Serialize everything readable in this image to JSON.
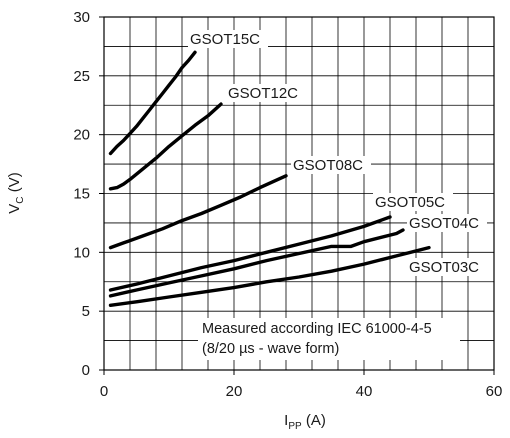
{
  "chart_data": {
    "type": "line",
    "xlabel_main": "I",
    "xlabel_sub": "PP",
    "xlabel_unit": " (A)",
    "ylabel_main": "V",
    "ylabel_sub": "C",
    "ylabel_unit": " (V)",
    "xlim": [
      0,
      60
    ],
    "ylim": [
      0,
      30
    ],
    "xticks": [
      0,
      20,
      40,
      60
    ],
    "yticks": [
      0,
      5,
      10,
      15,
      20,
      25,
      30
    ],
    "xgrid_step": 4,
    "ygrid_step": 2.5,
    "grid": true,
    "line_color": "#000000",
    "series": [
      {
        "name": "GSOT15C",
        "x": [
          1,
          2,
          3,
          4,
          5,
          6,
          7,
          8,
          9,
          10,
          11,
          12,
          13,
          14
        ],
        "y": [
          18.4,
          19.0,
          19.5,
          20.1,
          20.7,
          21.4,
          22.1,
          22.8,
          23.5,
          24.2,
          24.9,
          25.7,
          26.3,
          27.0
        ]
      },
      {
        "name": "GSOT12C",
        "x": [
          1,
          2,
          3,
          4,
          6,
          8,
          10,
          12,
          14,
          16,
          18
        ],
        "y": [
          15.4,
          15.5,
          15.8,
          16.2,
          17.1,
          18.0,
          19.0,
          19.9,
          20.8,
          21.6,
          22.6
        ]
      },
      {
        "name": "GSOT08C",
        "x": [
          1,
          3,
          6,
          9,
          12,
          15,
          18,
          21,
          24,
          28
        ],
        "y": [
          10.4,
          10.8,
          11.4,
          12.0,
          12.7,
          13.3,
          14.0,
          14.7,
          15.5,
          16.5
        ]
      },
      {
        "name": "GSOT05C",
        "x": [
          1,
          5,
          10,
          15,
          20,
          25,
          30,
          35,
          40,
          44
        ],
        "y": [
          6.8,
          7.3,
          8.0,
          8.7,
          9.3,
          10.0,
          10.7,
          11.4,
          12.2,
          13.0
        ]
      },
      {
        "name": "GSOT04C",
        "x": [
          1,
          5,
          10,
          15,
          20,
          25,
          30,
          35,
          38,
          40,
          45,
          46
        ],
        "y": [
          6.3,
          6.8,
          7.4,
          8.0,
          8.6,
          9.3,
          9.9,
          10.5,
          10.5,
          10.9,
          11.6,
          11.9
        ]
      },
      {
        "name": "GSOT03C",
        "x": [
          1,
          5,
          10,
          15,
          20,
          25,
          30,
          35,
          40,
          45,
          50
        ],
        "y": [
          5.5,
          5.8,
          6.2,
          6.6,
          7.0,
          7.5,
          7.9,
          8.4,
          9.0,
          9.7,
          10.4
        ]
      }
    ],
    "annotation_lines": [
      "Measured according IEC 61000-4-5",
      "(8/20 µs - wave form)"
    ]
  }
}
